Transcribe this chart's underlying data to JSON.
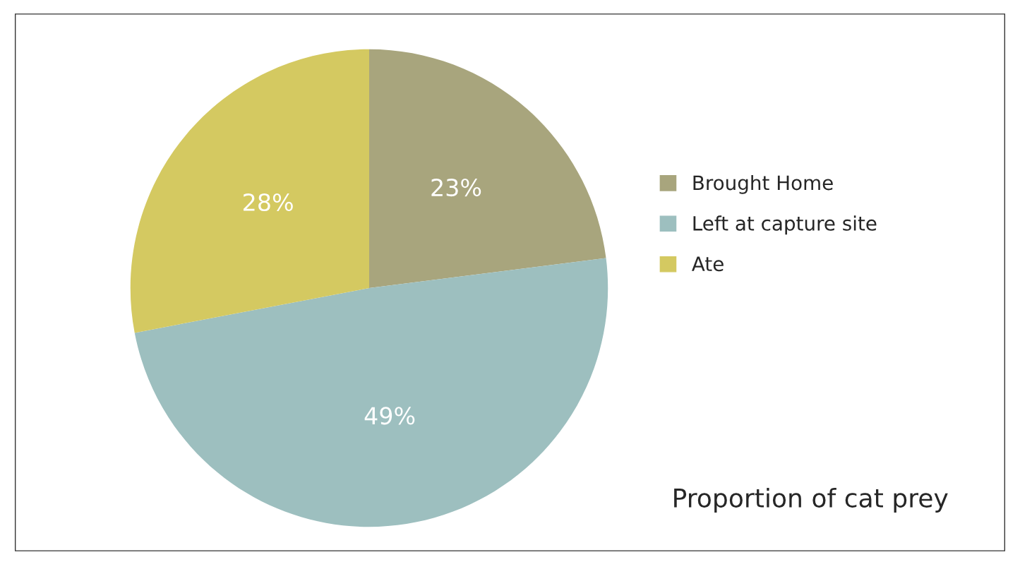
{
  "chart_data": {
    "type": "pie",
    "title": "Proportion of cat prey",
    "categories": [
      "Brought Home",
      "Left at capture site",
      "Ate"
    ],
    "values": [
      23,
      49,
      28
    ],
    "colors": [
      "#a8a57d",
      "#9dbfbf",
      "#d4c961"
    ],
    "value_labels": [
      "23%",
      "49%",
      "28%"
    ],
    "legend": "right"
  }
}
